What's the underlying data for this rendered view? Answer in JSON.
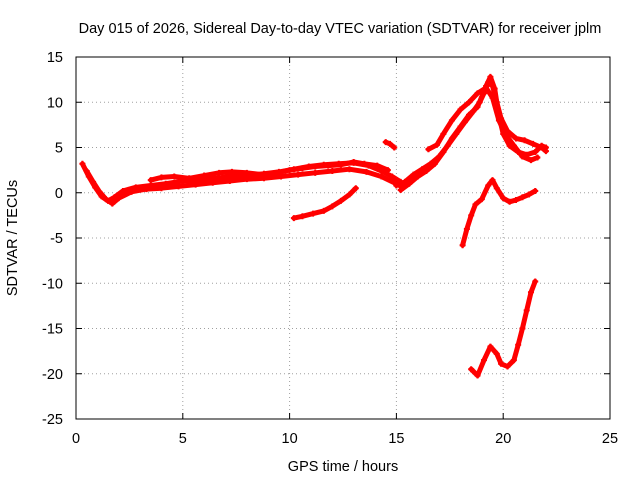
{
  "chart_data": {
    "type": "line",
    "title": "Day 015 of 2026, Sidereal Day-to-day VTEC variation (SDTVAR) for receiver jplm",
    "xlabel": "GPS time / hours",
    "ylabel": "SDTVAR / TECUs",
    "xlim": [
      0,
      25
    ],
    "ylim": [
      -25,
      15
    ],
    "x_ticks": [
      "0",
      "5",
      "10",
      "15",
      "20",
      "25"
    ],
    "y_ticks": [
      "-25",
      "-20",
      "-15",
      "-10",
      "-5",
      "0",
      "5",
      "10",
      "15"
    ],
    "x_tick_values": [
      0,
      5,
      10,
      15,
      20,
      25
    ],
    "y_tick_values": [
      -25,
      -20,
      -15,
      -10,
      -5,
      0,
      5,
      10,
      15
    ],
    "grid": true,
    "legend": "none",
    "color": "#ff0000",
    "series": [
      {
        "name": "track-1",
        "points": [
          [
            0.3,
            3.2
          ],
          [
            0.6,
            1.8
          ],
          [
            0.9,
            0.6
          ],
          [
            1.2,
            -0.4
          ],
          [
            1.5,
            -0.9
          ],
          [
            1.8,
            -0.5
          ],
          [
            2.2,
            0.2
          ],
          [
            2.8,
            0.6
          ],
          [
            3.5,
            0.8
          ],
          [
            4.2,
            1.0
          ],
          [
            5.0,
            1.3
          ],
          [
            5.8,
            1.4
          ],
          [
            6.5,
            1.6
          ],
          [
            7.2,
            1.8
          ],
          [
            8.0,
            1.9
          ],
          [
            8.8,
            2.1
          ],
          [
            9.5,
            2.3
          ],
          [
            10.2,
            2.6
          ],
          [
            10.9,
            2.9
          ],
          [
            11.6,
            3.1
          ],
          [
            12.3,
            3.2
          ],
          [
            13.0,
            3.3
          ],
          [
            13.7,
            3.0
          ],
          [
            14.3,
            2.4
          ],
          [
            14.8,
            1.8
          ],
          [
            15.2,
            1.2
          ]
        ]
      },
      {
        "name": "track-2",
        "points": [
          [
            0.5,
            2.4
          ],
          [
            0.8,
            1.2
          ],
          [
            1.1,
            0.1
          ],
          [
            1.4,
            -0.7
          ],
          [
            1.7,
            -1.2
          ],
          [
            2.0,
            -0.6
          ],
          [
            2.6,
            0.1
          ],
          [
            3.3,
            0.4
          ],
          [
            4.0,
            0.5
          ],
          [
            4.8,
            0.7
          ],
          [
            5.6,
            0.9
          ],
          [
            6.4,
            1.1
          ],
          [
            7.2,
            1.3
          ],
          [
            8.0,
            1.5
          ],
          [
            8.8,
            1.6
          ],
          [
            9.6,
            1.8
          ],
          [
            10.4,
            2.0
          ],
          [
            11.2,
            2.2
          ],
          [
            12.0,
            2.4
          ],
          [
            12.8,
            2.6
          ],
          [
            13.6,
            2.3
          ],
          [
            14.3,
            1.8
          ],
          [
            14.9,
            1.1
          ],
          [
            15.3,
            0.6
          ]
        ]
      },
      {
        "name": "track-3",
        "points": [
          [
            3.5,
            1.4
          ],
          [
            4.0,
            1.7
          ],
          [
            4.6,
            1.8
          ],
          [
            5.3,
            1.6
          ],
          [
            6.0,
            1.9
          ],
          [
            6.7,
            2.2
          ],
          [
            7.3,
            2.3
          ],
          [
            8.0,
            2.2
          ],
          [
            8.7,
            2.0
          ],
          [
            9.4,
            2.2
          ],
          [
            10.0,
            2.5
          ],
          [
            10.6,
            2.7
          ],
          [
            11.2,
            2.9
          ],
          [
            11.8,
            3.0
          ],
          [
            12.4,
            3.1
          ],
          [
            13.0,
            3.4
          ],
          [
            13.5,
            3.2
          ],
          [
            14.1,
            3.0
          ],
          [
            14.6,
            2.5
          ]
        ]
      },
      {
        "name": "track-4",
        "points": [
          [
            10.2,
            -2.8
          ],
          [
            10.6,
            -2.6
          ],
          [
            11.1,
            -2.3
          ],
          [
            11.6,
            -2.0
          ],
          [
            12.0,
            -1.5
          ],
          [
            12.4,
            -0.9
          ],
          [
            12.8,
            -0.2
          ],
          [
            13.1,
            0.5
          ]
        ]
      },
      {
        "name": "track-5",
        "points": [
          [
            14.5,
            5.6
          ],
          [
            14.7,
            5.4
          ],
          [
            14.9,
            5.0
          ]
        ]
      },
      {
        "name": "track-6",
        "points": [
          [
            15.0,
            0.8
          ],
          [
            15.4,
            1.2
          ],
          [
            15.8,
            2.0
          ],
          [
            16.2,
            2.6
          ],
          [
            16.6,
            3.2
          ],
          [
            17.0,
            4.0
          ],
          [
            17.4,
            5.2
          ],
          [
            17.8,
            6.5
          ],
          [
            18.2,
            7.8
          ],
          [
            18.6,
            9.0
          ],
          [
            18.9,
            10.0
          ],
          [
            19.1,
            11.0
          ],
          [
            19.3,
            12.2
          ],
          [
            19.5,
            11.8
          ],
          [
            19.7,
            10.0
          ],
          [
            19.9,
            8.2
          ],
          [
            20.2,
            6.8
          ],
          [
            20.6,
            6.0
          ],
          [
            21.0,
            5.8
          ],
          [
            21.4,
            5.4
          ],
          [
            21.8,
            5.0
          ],
          [
            22.0,
            4.6
          ]
        ]
      },
      {
        "name": "track-7",
        "points": [
          [
            15.2,
            0.3
          ],
          [
            15.6,
            1.0
          ],
          [
            16.0,
            1.8
          ],
          [
            16.4,
            2.4
          ],
          [
            16.8,
            3.2
          ],
          [
            17.2,
            4.5
          ],
          [
            17.6,
            6.0
          ],
          [
            18.0,
            7.3
          ],
          [
            18.4,
            8.6
          ],
          [
            18.8,
            9.5
          ],
          [
            19.2,
            11.8
          ],
          [
            19.4,
            12.8
          ],
          [
            19.6,
            11.5
          ],
          [
            19.8,
            8.5
          ],
          [
            20.0,
            6.5
          ],
          [
            20.3,
            5.2
          ],
          [
            20.7,
            4.5
          ],
          [
            21.1,
            4.2
          ],
          [
            21.5,
            4.5
          ],
          [
            21.8,
            5.2
          ],
          [
            22.0,
            5.0
          ]
        ]
      },
      {
        "name": "track-8",
        "points": [
          [
            16.5,
            4.8
          ],
          [
            16.9,
            5.3
          ],
          [
            17.2,
            6.5
          ],
          [
            17.6,
            8.0
          ],
          [
            18.0,
            9.2
          ],
          [
            18.4,
            10.0
          ],
          [
            18.8,
            11.0
          ],
          [
            19.2,
            11.6
          ],
          [
            19.5,
            10.5
          ],
          [
            19.8,
            8.0
          ],
          [
            20.1,
            6.5
          ],
          [
            20.5,
            5.2
          ],
          [
            20.9,
            4.0
          ],
          [
            21.3,
            3.6
          ],
          [
            21.6,
            3.9
          ]
        ]
      },
      {
        "name": "track-9",
        "points": [
          [
            18.1,
            -5.8
          ],
          [
            18.3,
            -4.0
          ],
          [
            18.5,
            -2.5
          ],
          [
            18.7,
            -1.3
          ],
          [
            19.0,
            -0.7
          ],
          [
            19.3,
            0.8
          ],
          [
            19.5,
            1.4
          ],
          [
            19.7,
            0.5
          ],
          [
            20.0,
            -0.6
          ],
          [
            20.3,
            -1.0
          ],
          [
            20.6,
            -0.8
          ],
          [
            20.9,
            -0.5
          ],
          [
            21.2,
            -0.2
          ],
          [
            21.5,
            0.2
          ]
        ]
      },
      {
        "name": "track-10",
        "points": [
          [
            18.5,
            -19.5
          ],
          [
            18.8,
            -20.2
          ],
          [
            19.1,
            -18.5
          ],
          [
            19.4,
            -17.0
          ],
          [
            19.7,
            -17.8
          ],
          [
            19.9,
            -18.9
          ],
          [
            20.2,
            -19.2
          ],
          [
            20.5,
            -18.5
          ],
          [
            20.7,
            -16.8
          ],
          [
            20.9,
            -15.0
          ],
          [
            21.1,
            -13.0
          ],
          [
            21.3,
            -11.0
          ],
          [
            21.5,
            -9.8
          ]
        ]
      }
    ]
  }
}
